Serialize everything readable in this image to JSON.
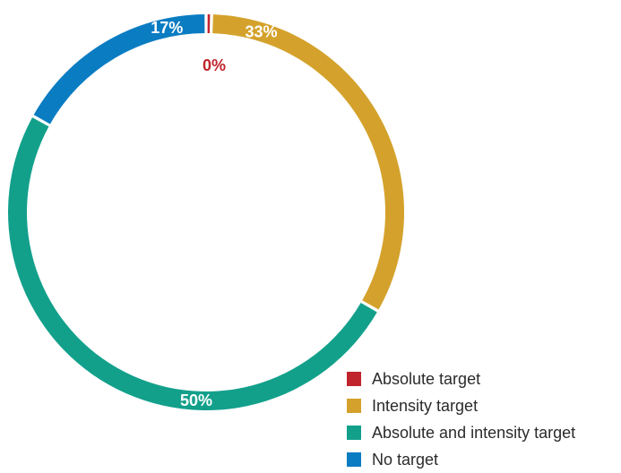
{
  "chart_data": {
    "type": "pie",
    "style": "donut",
    "categories": [
      "Absolute target",
      "Intensity target",
      "Absolute and intensity target",
      "No target"
    ],
    "values": [
      0,
      33,
      50,
      17
    ],
    "value_labels": [
      "0%",
      "33%",
      "50%",
      "17%"
    ],
    "colors": [
      "#c0242d",
      "#d4a22c",
      "#12a08b",
      "#0a7cc2"
    ],
    "legend": "bottom-right"
  }
}
